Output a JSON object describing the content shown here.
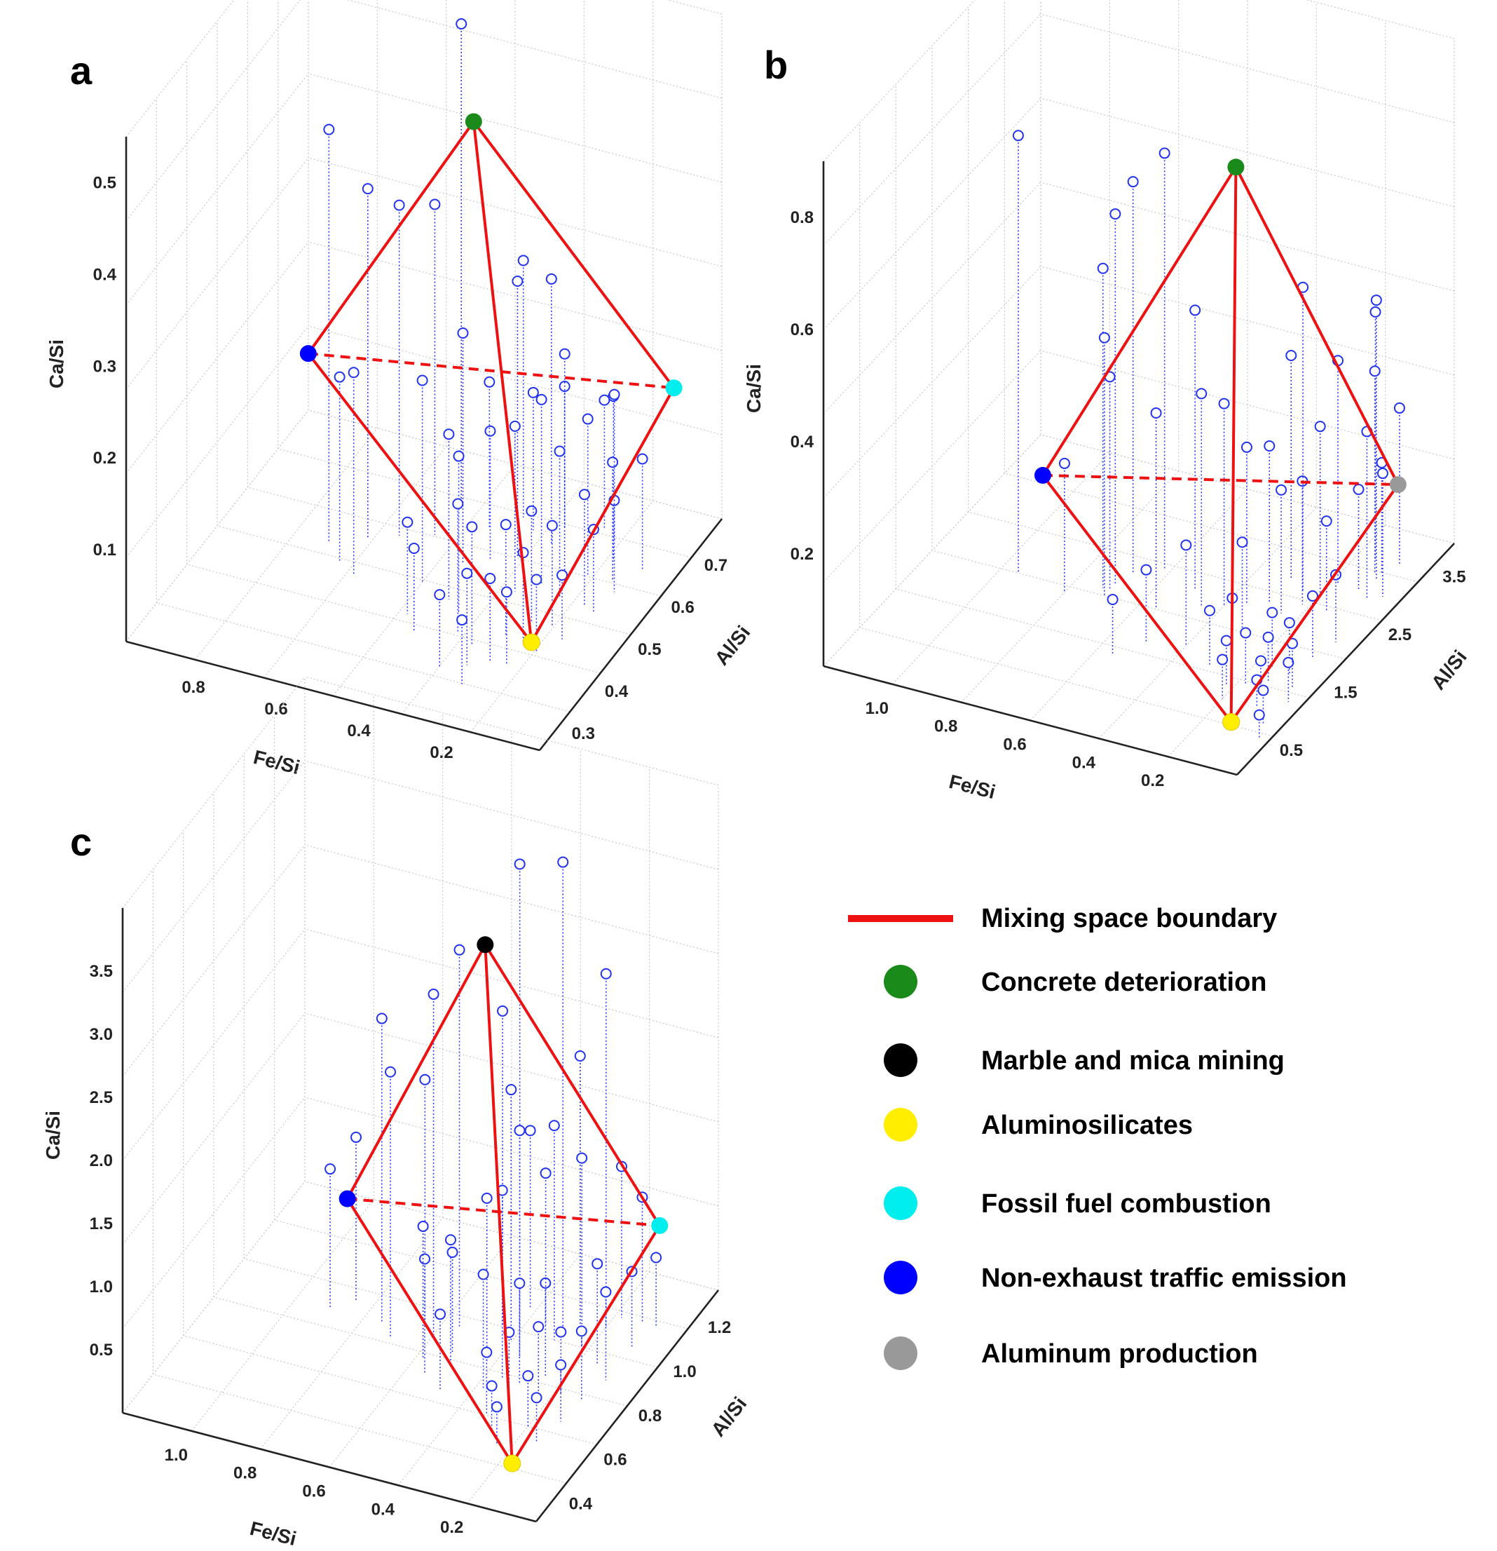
{
  "legend": {
    "boundary_label": "Mixing space boundary",
    "items": [
      {
        "label": "Concrete deterioration",
        "color": "#1a8a1a"
      },
      {
        "label": "Marble and mica mining",
        "color": "#000000"
      },
      {
        "label": "Aluminosilicates",
        "color": "#ffee00"
      },
      {
        "label": "Fossil fuel combustion",
        "color": "#00eeee"
      },
      {
        "label": "Non-exhaust traffic emission",
        "color": "#0000ff"
      },
      {
        "label": "Aluminum production",
        "color": "#999999"
      }
    ],
    "boundary_color": "#ee1111"
  },
  "chart_data": [
    {
      "panel": "a",
      "type": "scatter3d",
      "xlabel": "Fe/Si",
      "ylabel": "Al/Si",
      "zlabel": "Ca/Si",
      "xlim": [
        0,
        1.0
      ],
      "ylim": [
        0.25,
        0.8
      ],
      "zlim": [
        0,
        0.55
      ],
      "xticks": [
        0.8,
        0.6,
        0.4,
        0.2
      ],
      "yticks": [
        0.3,
        0.4,
        0.5,
        0.6,
        0.7
      ],
      "zticks": [
        0.1,
        0.2,
        0.3,
        0.4,
        0.5
      ],
      "end_members": [
        {
          "name": "Concrete deterioration",
          "color": "#1a8a1a",
          "x": 0.4,
          "y": 0.55,
          "z": 0.5
        },
        {
          "name": "Non-exhaust traffic emission",
          "color": "#0000ff",
          "x": 0.8,
          "y": 0.55,
          "z": 0.2
        },
        {
          "name": "Aluminosilicates",
          "color": "#ffee00",
          "x": 0.1,
          "y": 0.35,
          "z": 0.06
        },
        {
          "name": "Fossil fuel combustion",
          "color": "#00eeee",
          "x": 0.1,
          "y": 0.78,
          "z": 0.14
        }
      ],
      "edges": [
        [
          0,
          1
        ],
        [
          0,
          2
        ],
        [
          0,
          3
        ],
        [
          1,
          2
        ],
        [
          2,
          3
        ]
      ],
      "dashed_edges": [
        [
          1,
          3
        ]
      ],
      "points": [
        [
          0.55,
          0.7,
          0.52
        ],
        [
          0.75,
          0.55,
          0.45
        ],
        [
          0.68,
          0.58,
          0.38
        ],
        [
          0.62,
          0.6,
          0.36
        ],
        [
          0.55,
          0.62,
          0.36
        ],
        [
          0.4,
          0.7,
          0.28
        ],
        [
          0.35,
          0.62,
          0.3
        ],
        [
          0.3,
          0.66,
          0.29
        ],
        [
          0.45,
          0.58,
          0.25
        ],
        [
          0.5,
          0.52,
          0.22
        ],
        [
          0.65,
          0.5,
          0.22
        ],
        [
          0.7,
          0.52,
          0.2
        ],
        [
          0.42,
          0.5,
          0.18
        ],
        [
          0.38,
          0.48,
          0.17
        ],
        [
          0.3,
          0.55,
          0.18
        ],
        [
          0.26,
          0.58,
          0.2
        ],
        [
          0.22,
          0.6,
          0.21
        ],
        [
          0.2,
          0.56,
          0.16
        ],
        [
          0.18,
          0.62,
          0.17
        ],
        [
          0.15,
          0.66,
          0.18
        ],
        [
          0.35,
          0.44,
          0.14
        ],
        [
          0.3,
          0.42,
          0.13
        ],
        [
          0.25,
          0.46,
          0.12
        ],
        [
          0.22,
          0.5,
          0.12
        ],
        [
          0.2,
          0.45,
          0.1
        ],
        [
          0.17,
          0.5,
          0.11
        ],
        [
          0.14,
          0.56,
          0.12
        ],
        [
          0.12,
          0.62,
          0.13
        ],
        [
          0.28,
          0.38,
          0.1
        ],
        [
          0.24,
          0.4,
          0.09
        ],
        [
          0.2,
          0.4,
          0.08
        ],
        [
          0.16,
          0.44,
          0.08
        ],
        [
          0.13,
          0.48,
          0.07
        ],
        [
          0.11,
          0.55,
          0.09
        ],
        [
          0.1,
          0.6,
          0.1
        ],
        [
          0.08,
          0.66,
          0.12
        ],
        [
          0.4,
          0.6,
          0.14
        ],
        [
          0.45,
          0.66,
          0.16
        ],
        [
          0.36,
          0.68,
          0.15
        ],
        [
          0.3,
          0.7,
          0.19
        ],
        [
          0.22,
          0.72,
          0.14
        ],
        [
          0.18,
          0.7,
          0.16
        ],
        [
          0.48,
          0.45,
          0.1
        ],
        [
          0.44,
          0.42,
          0.09
        ],
        [
          0.33,
          0.36,
          0.08
        ],
        [
          0.26,
          0.34,
          0.07
        ]
      ]
    },
    {
      "panel": "b",
      "type": "scatter3d",
      "xlabel": "Fe/Si",
      "ylabel": "Al/Si",
      "zlabel": "Ca/Si",
      "xlim": [
        0,
        1.2
      ],
      "ylim": [
        0,
        4.0
      ],
      "zlim": [
        0,
        0.9
      ],
      "xticks": [
        1.0,
        0.8,
        0.6,
        0.4,
        0.2
      ],
      "yticks": [
        0.5,
        1.5,
        2.5,
        3.5
      ],
      "zticks": [
        0.2,
        0.4,
        0.6,
        0.8
      ],
      "end_members": [
        {
          "name": "Concrete deterioration",
          "color": "#1a8a1a",
          "x": 0.35,
          "y": 2.2,
          "z": 0.8
        },
        {
          "name": "Non-exhaust traffic emission",
          "color": "#0000ff",
          "x": 0.8,
          "y": 1.5,
          "z": 0.25
        },
        {
          "name": "Aluminosilicates",
          "color": "#ffee00",
          "x": 0.08,
          "y": 0.4,
          "z": 0.04
        },
        {
          "name": "Aluminum production",
          "color": "#999999",
          "x": 0.1,
          "y": 3.6,
          "z": 0.13
        }
      ],
      "edges": [
        [
          0,
          1
        ],
        [
          0,
          2
        ],
        [
          0,
          3
        ],
        [
          1,
          2
        ],
        [
          2,
          3
        ]
      ],
      "dashed_edges": [
        [
          1,
          3
        ]
      ],
      "points": [
        [
          0.95,
          2.0,
          0.78
        ],
        [
          0.62,
          2.6,
          0.74
        ],
        [
          0.68,
          2.4,
          0.7
        ],
        [
          0.7,
          2.2,
          0.66
        ],
        [
          0.72,
          2.1,
          0.57
        ],
        [
          0.7,
          2.0,
          0.46
        ],
        [
          0.7,
          2.1,
          0.38
        ],
        [
          0.8,
          1.9,
          0.23
        ],
        [
          0.5,
          2.4,
          0.5
        ],
        [
          0.55,
          2.0,
          0.35
        ],
        [
          0.45,
          2.2,
          0.38
        ],
        [
          0.4,
          2.3,
          0.36
        ],
        [
          0.35,
          2.4,
          0.28
        ],
        [
          0.3,
          2.5,
          0.28
        ],
        [
          0.25,
          2.4,
          0.22
        ],
        [
          0.22,
          2.6,
          0.22
        ],
        [
          0.3,
          2.0,
          0.16
        ],
        [
          0.4,
          1.6,
          0.18
        ],
        [
          0.5,
          1.5,
          0.13
        ],
        [
          0.55,
          1.2,
          0.1
        ],
        [
          0.3,
          1.4,
          0.1
        ],
        [
          0.25,
          1.5,
          0.12
        ],
        [
          0.22,
          1.2,
          0.08
        ],
        [
          0.2,
          1.0,
          0.07
        ],
        [
          0.18,
          1.3,
          0.09
        ],
        [
          0.15,
          1.6,
          0.1
        ],
        [
          0.13,
          1.4,
          0.08
        ],
        [
          0.12,
          1.2,
          0.06
        ],
        [
          0.1,
          1.0,
          0.05
        ],
        [
          0.1,
          1.6,
          0.09
        ],
        [
          0.08,
          1.9,
          0.11
        ],
        [
          0.06,
          2.2,
          0.12
        ],
        [
          0.15,
          2.6,
          0.16
        ],
        [
          0.12,
          3.0,
          0.18
        ],
        [
          0.1,
          3.3,
          0.2
        ],
        [
          0.08,
          2.9,
          0.3
        ],
        [
          0.1,
          3.2,
          0.5
        ],
        [
          0.15,
          3.5,
          0.44
        ],
        [
          0.12,
          3.3,
          0.36
        ],
        [
          0.08,
          3.5,
          0.28
        ],
        [
          0.05,
          3.0,
          0.22
        ],
        [
          0.2,
          2.8,
          0.3
        ],
        [
          0.18,
          3.0,
          0.4
        ],
        [
          0.25,
          2.8,
          0.54
        ],
        [
          0.3,
          2.9,
          0.4
        ],
        [
          0.05,
          0.8,
          0.06
        ],
        [
          0.04,
          1.2,
          0.07
        ],
        [
          0.03,
          0.6,
          0.04
        ],
        [
          0.06,
          1.4,
          0.08
        ]
      ]
    },
    {
      "panel": "c",
      "type": "scatter3d",
      "xlabel": "Fe/Si",
      "ylabel": "Al/Si",
      "zlabel": "Ca/Si",
      "xlim": [
        0,
        1.2
      ],
      "ylim": [
        0.3,
        1.35
      ],
      "zlim": [
        0,
        4.0
      ],
      "xticks": [
        1.0,
        0.8,
        0.6,
        0.4,
        0.2
      ],
      "yticks": [
        0.4,
        0.6,
        0.8,
        1.0,
        1.2
      ],
      "zticks": [
        0.5,
        1.0,
        1.5,
        2.0,
        2.5,
        3.0,
        3.5
      ],
      "end_members": [
        {
          "name": "Marble and mica mining",
          "color": "#000000",
          "x": 0.45,
          "y": 0.9,
          "z": 3.2
        },
        {
          "name": "Non-exhaust traffic emission",
          "color": "#0000ff",
          "x": 0.85,
          "y": 0.9,
          "z": 0.9
        },
        {
          "name": "Aluminosilicates",
          "color": "#ffee00",
          "x": 0.12,
          "y": 0.4,
          "z": 0.2
        },
        {
          "name": "Fossil fuel combustion",
          "color": "#00eeee",
          "x": 0.12,
          "y": 1.25,
          "z": 0.6
        }
      ],
      "edges": [
        [
          0,
          1
        ],
        [
          0,
          2
        ],
        [
          0,
          3
        ],
        [
          1,
          2
        ],
        [
          2,
          3
        ]
      ],
      "dashed_edges": [
        [
          1,
          3
        ]
      ],
      "points": [
        [
          0.4,
          1.0,
          3.7
        ],
        [
          0.3,
          1.05,
          3.7
        ],
        [
          0.55,
          0.95,
          3.0
        ],
        [
          0.6,
          0.9,
          2.7
        ],
        [
          0.75,
          0.9,
          2.4
        ],
        [
          0.7,
          0.85,
          2.1
        ],
        [
          0.65,
          0.95,
          1.9
        ],
        [
          0.85,
          0.95,
          1.3
        ],
        [
          0.9,
          0.9,
          1.1
        ],
        [
          0.45,
          1.0,
          2.5
        ],
        [
          0.4,
          0.95,
          2.0
        ],
        [
          0.35,
          0.9,
          1.8
        ],
        [
          0.3,
          1.0,
          1.7
        ],
        [
          0.25,
          1.05,
          2.2
        ],
        [
          0.2,
          1.1,
          2.8
        ],
        [
          0.22,
          1.0,
          1.5
        ],
        [
          0.35,
          0.8,
          1.5
        ],
        [
          0.42,
          0.85,
          1.3
        ],
        [
          0.5,
          0.8,
          1.0
        ],
        [
          0.55,
          0.75,
          0.9
        ],
        [
          0.38,
          0.75,
          0.9
        ],
        [
          0.3,
          0.8,
          0.8
        ],
        [
          0.25,
          0.85,
          0.75
        ],
        [
          0.28,
          0.7,
          0.6
        ],
        [
          0.22,
          0.75,
          0.6
        ],
        [
          0.18,
          0.8,
          0.5
        ],
        [
          0.2,
          0.65,
          0.4
        ],
        [
          0.15,
          0.6,
          0.35
        ],
        [
          0.13,
          0.7,
          0.45
        ],
        [
          0.12,
          0.8,
          0.55
        ],
        [
          0.1,
          0.9,
          0.7
        ],
        [
          0.15,
          0.95,
          0.8
        ],
        [
          0.1,
          1.05,
          0.6
        ],
        [
          0.08,
          1.15,
          0.55
        ],
        [
          0.12,
          1.15,
          1.0
        ],
        [
          0.18,
          1.15,
          1.2
        ],
        [
          0.28,
          0.6,
          0.35
        ],
        [
          0.24,
          0.55,
          0.3
        ],
        [
          0.32,
          0.65,
          0.5
        ],
        [
          0.48,
          0.7,
          0.6
        ],
        [
          0.52,
          0.85,
          0.8
        ],
        [
          0.58,
          0.8,
          1.05
        ],
        [
          0.35,
          1.05,
          1.2
        ],
        [
          0.42,
          1.1,
          1.4
        ]
      ]
    }
  ]
}
